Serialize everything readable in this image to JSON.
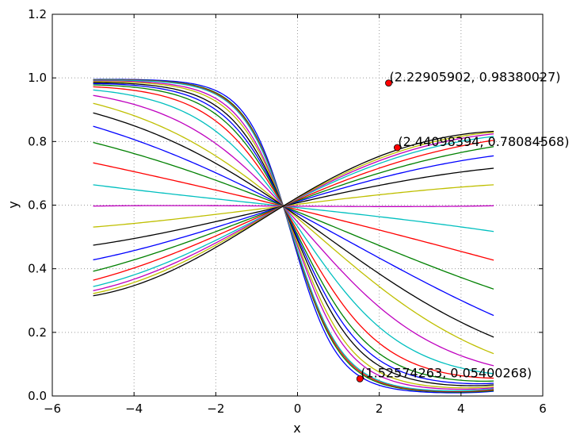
{
  "chart_data": {
    "type": "line",
    "title": "",
    "xlabel": "x",
    "ylabel": "y",
    "xlim": [
      -6,
      6
    ],
    "ylim": [
      0.0,
      1.2
    ],
    "grid": true,
    "grid_style": "dotted",
    "x_ticks": [
      -6,
      -4,
      -2,
      0,
      2,
      4,
      6
    ],
    "y_ticks": [
      0.0,
      0.2,
      0.4,
      0.6,
      0.8,
      1.0,
      1.2
    ],
    "x_tick_labels": [
      "−6",
      "−4",
      "−2",
      "0",
      "2",
      "4",
      "6"
    ],
    "y_tick_labels": [
      "0.0",
      "0.2",
      "0.4",
      "0.6",
      "0.8",
      "1.0",
      "1.2"
    ],
    "x_domain": [
      -5.0,
      4.8
    ],
    "series": [
      {
        "color": "#0000ff",
        "left": 0.995,
        "right": 0.015
      },
      {
        "color": "#008000",
        "left": 0.994,
        "right": 0.017
      },
      {
        "color": "#ff0000",
        "left": 0.993,
        "right": 0.02
      },
      {
        "color": "#00bfbf",
        "left": 0.992,
        "right": 0.023
      },
      {
        "color": "#bf00bf",
        "left": 0.99,
        "right": 0.026
      },
      {
        "color": "#bfbf00",
        "left": 0.988,
        "right": 0.03
      },
      {
        "color": "#000000",
        "left": 0.985,
        "right": 0.035
      },
      {
        "color": "#0000ff",
        "left": 0.982,
        "right": 0.04
      },
      {
        "color": "#008000",
        "left": 0.978,
        "right": 0.047
      },
      {
        "color": "#ff0000",
        "left": 0.972,
        "right": 0.056
      },
      {
        "color": "#00bfbf",
        "left": 0.962,
        "right": 0.07
      },
      {
        "color": "#bf00bf",
        "left": 0.945,
        "right": 0.095
      },
      {
        "color": "#bfbf00",
        "left": 0.92,
        "right": 0.133
      },
      {
        "color": "#000000",
        "left": 0.89,
        "right": 0.185
      },
      {
        "color": "#0000ff",
        "left": 0.848,
        "right": 0.253
      },
      {
        "color": "#008000",
        "left": 0.797,
        "right": 0.336
      },
      {
        "color": "#ff0000",
        "left": 0.733,
        "right": 0.427
      },
      {
        "color": "#00bfbf",
        "left": 0.664,
        "right": 0.517
      },
      {
        "color": "#bf00bf",
        "left": 0.597,
        "right": 0.598
      },
      {
        "color": "#bfbf00",
        "left": 0.531,
        "right": 0.664
      },
      {
        "color": "#000000",
        "left": 0.474,
        "right": 0.716
      },
      {
        "color": "#0000ff",
        "left": 0.428,
        "right": 0.755
      },
      {
        "color": "#008000",
        "left": 0.392,
        "right": 0.784
      },
      {
        "color": "#ff0000",
        "left": 0.364,
        "right": 0.804
      },
      {
        "color": "#00bfbf",
        "left": 0.344,
        "right": 0.816
      },
      {
        "color": "#bf00bf",
        "left": 0.331,
        "right": 0.824
      },
      {
        "color": "#bfbf00",
        "left": 0.322,
        "right": 0.829
      },
      {
        "color": "#000000",
        "left": 0.315,
        "right": 0.832
      }
    ],
    "points": [
      {
        "x": 2.22905902,
        "y": 0.98380027,
        "label": "(2.22905902, 0.98380027)"
      },
      {
        "x": 2.44098394,
        "y": 0.78084568,
        "label": "(2.44098394, 0.78084568)"
      },
      {
        "x": 1.52574263,
        "y": 0.05400268,
        "label": "(1.52574263, 0.05400268)"
      }
    ],
    "point_color": "#ff0000"
  }
}
